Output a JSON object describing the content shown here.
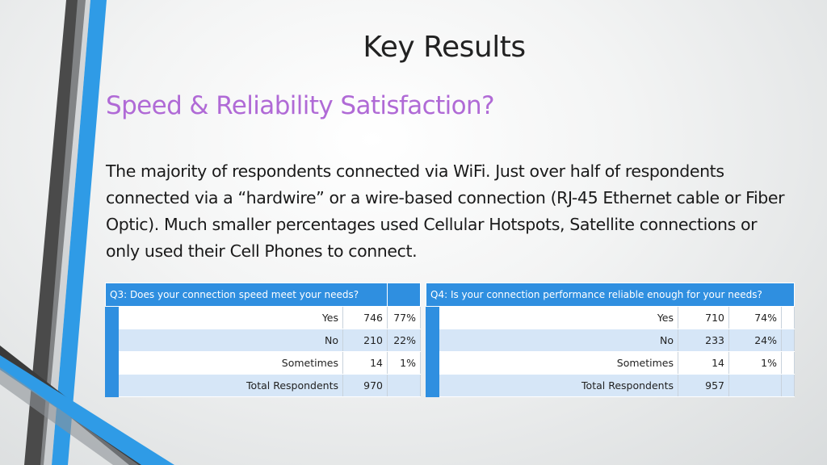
{
  "slide": {
    "title": "Key Results",
    "subtitle": "Speed & Reliability Satisfaction?",
    "body": "The majority of respondents connected via WiFi.  Just over half of respondents connected via a “hardwire” or a wire-based connection (RJ-45 Ethernet cable or Fiber Optic).  Much smaller percentages used Cellular Hotspots, Satellite connections or only used their Cell Phones to connect."
  },
  "table_q3": {
    "question": "Q3: Does your connection speed meet your needs?",
    "rows": [
      {
        "label": "Yes",
        "count": "746",
        "pct": "77%"
      },
      {
        "label": "No",
        "count": "210",
        "pct": "22%"
      },
      {
        "label": "Sometimes",
        "count": "14",
        "pct": "1%"
      },
      {
        "label": "Total Respondents",
        "count": "970",
        "pct": ""
      }
    ]
  },
  "table_q4": {
    "question": "Q4: Is your connection performance reliable enough for your needs?",
    "rows": [
      {
        "label": "Yes",
        "count": "710",
        "pct": "74%"
      },
      {
        "label": "No",
        "count": "233",
        "pct": "24%"
      },
      {
        "label": "Sometimes",
        "count": "14",
        "pct": "1%"
      },
      {
        "label": "Total Respondents",
        "count": "957",
        "pct": ""
      }
    ]
  },
  "colors": {
    "accent_blue": "#2f8fe0",
    "subtitle_purple": "#b06ad6",
    "stripe_gray": "#555555",
    "row_alt": "#d6e6f7"
  }
}
